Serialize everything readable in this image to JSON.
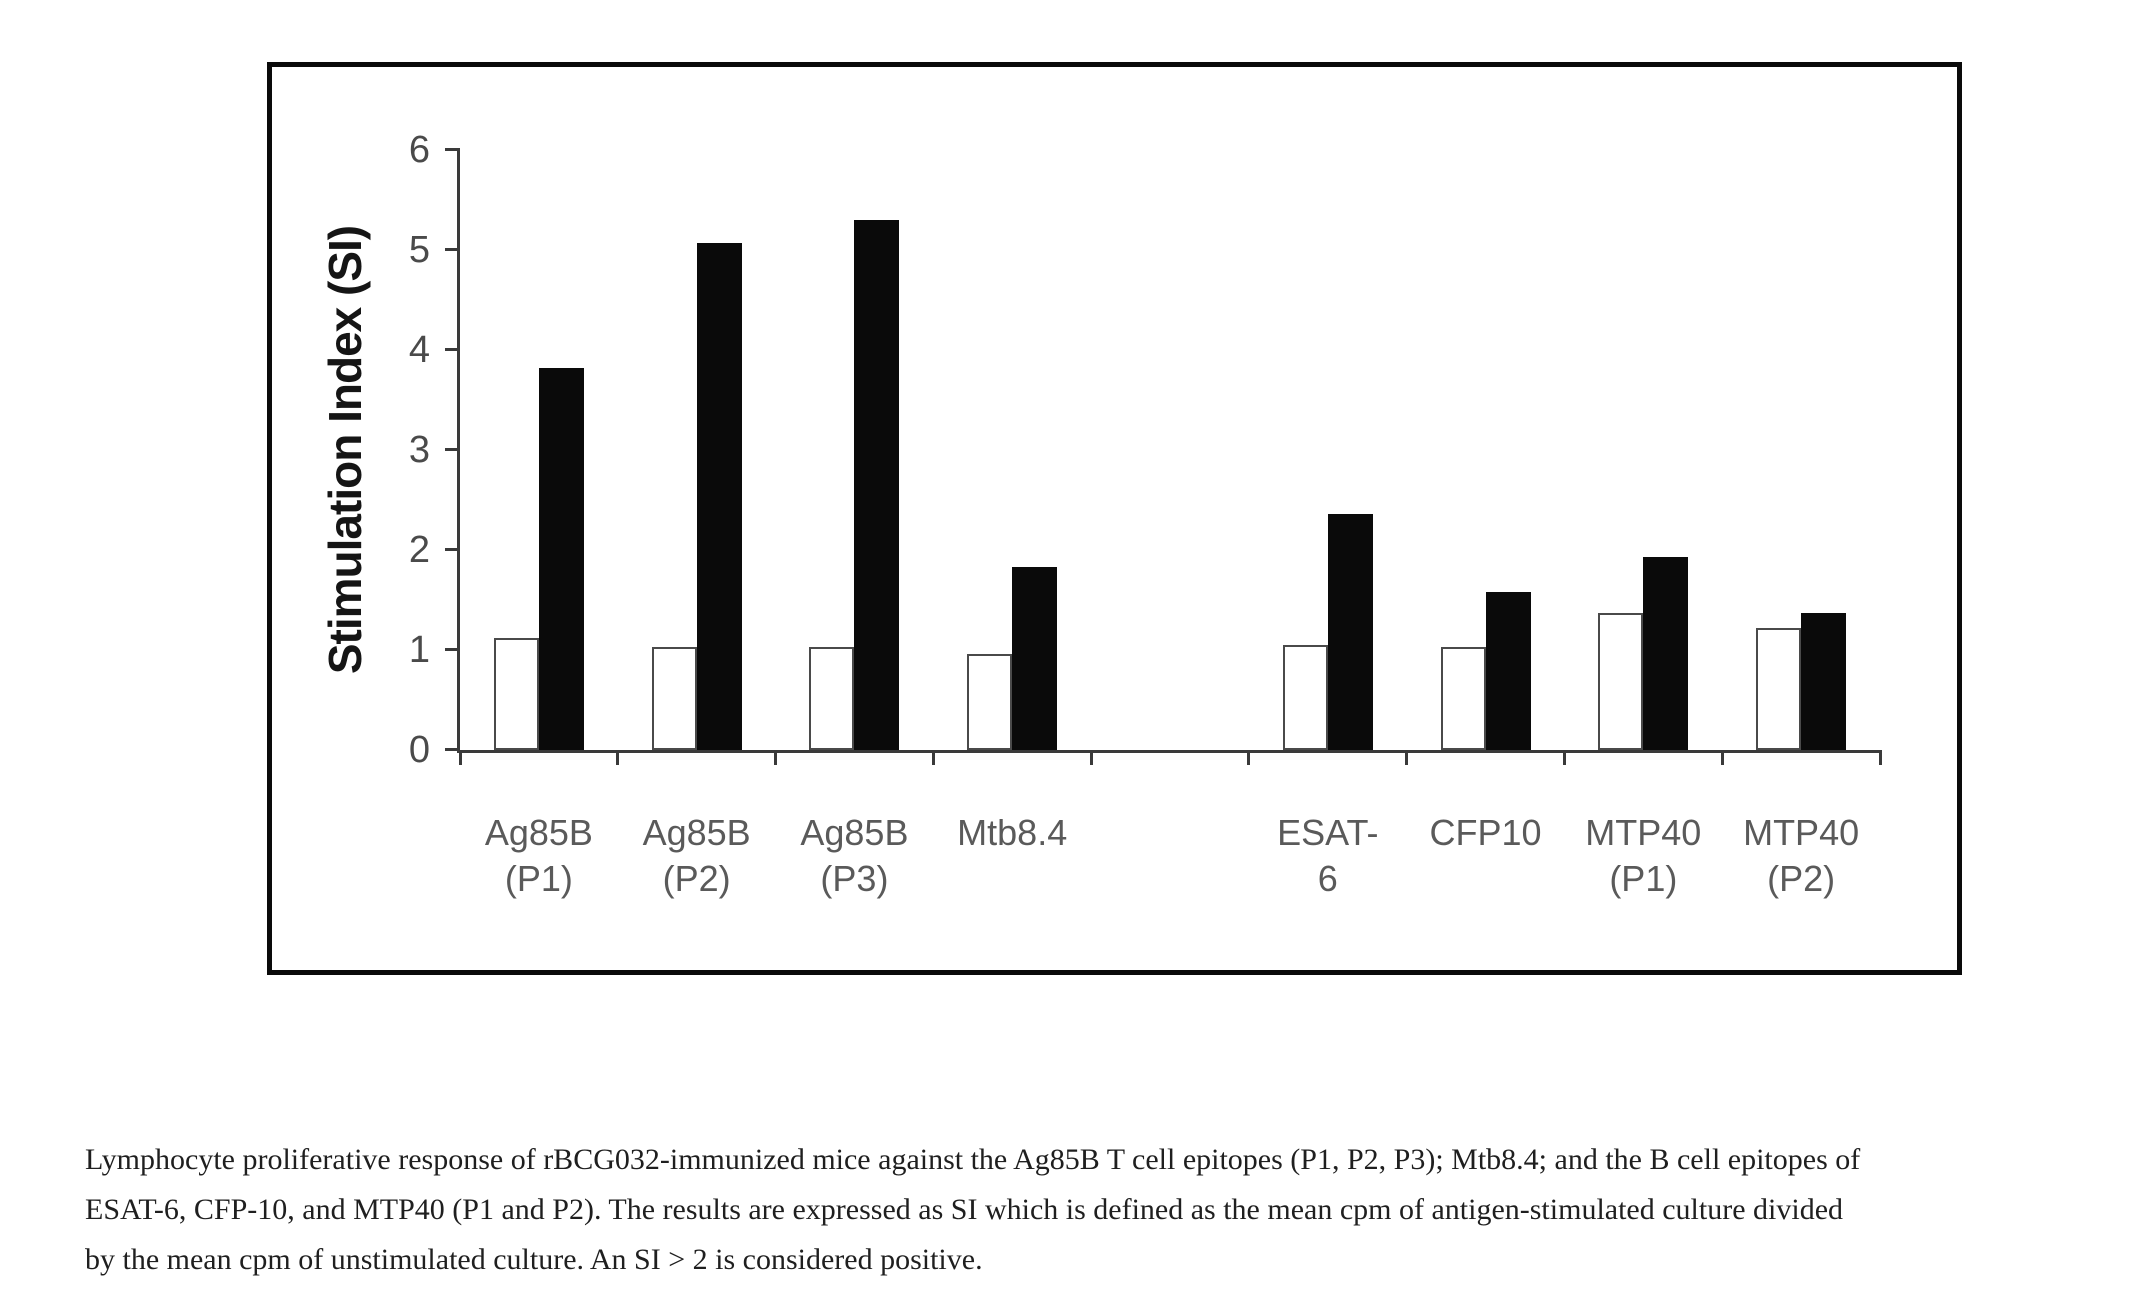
{
  "page": {
    "background": "#ffffff",
    "frame_border_color": "#0a0a0a"
  },
  "chart_data": {
    "type": "bar",
    "title": "",
    "xlabel": "",
    "ylabel": "Stimulation Index (SI)",
    "ylim": [
      0,
      6
    ],
    "yticks": [
      0,
      1,
      2,
      3,
      4,
      5,
      6
    ],
    "grid": false,
    "legend": "none",
    "axis_color": "#3a3a3a",
    "tick_label_color": "#4a4a4a",
    "categories": [
      "Ag85B (P1)",
      "Ag85B (P2)",
      "Ag85B (P3)",
      "Mtb8.4",
      "",
      "ESAT-6",
      "CFP10",
      "MTP40 (P1)",
      "MTP40 (P2)"
    ],
    "xtick_label_lines": [
      [
        "Ag85B",
        "(P1)"
      ],
      [
        "Ag85B",
        "(P2)"
      ],
      [
        "Ag85B",
        "(P3)"
      ],
      [
        "Mtb8.4"
      ],
      [],
      [
        "ESAT-",
        "6"
      ],
      [
        "CFP10"
      ],
      [
        "MTP40",
        "(P1)"
      ],
      [
        "MTP40",
        "(P2)"
      ]
    ],
    "series": [
      {
        "name": "open-white-bars",
        "fill": "#ffffff",
        "stroke": "#4a4a4a",
        "values": [
          1.12,
          1.03,
          1.03,
          0.96,
          null,
          1.05,
          1.03,
          1.37,
          1.22
        ]
      },
      {
        "name": "filled-black-bars",
        "fill": "#0a0a0a",
        "stroke": "#0a0a0a",
        "values": [
          3.82,
          5.07,
          5.3,
          1.83,
          null,
          2.36,
          1.58,
          1.93,
          1.37
        ]
      }
    ]
  },
  "caption": {
    "lines": [
      "Lymphocyte proliferative response of rBCG032-immunized mice against the Ag85B T cell epitopes (P1, P2, P3); Mtb8.4; and the B cell epitopes of",
      "ESAT-6, CFP-10, and MTP40 (P1 and P2). The results are expressed as SI which is defined as the mean cpm of antigen-stimulated culture divided",
      "by the mean cpm of unstimulated culture. An SI > 2 is considered positive."
    ]
  }
}
